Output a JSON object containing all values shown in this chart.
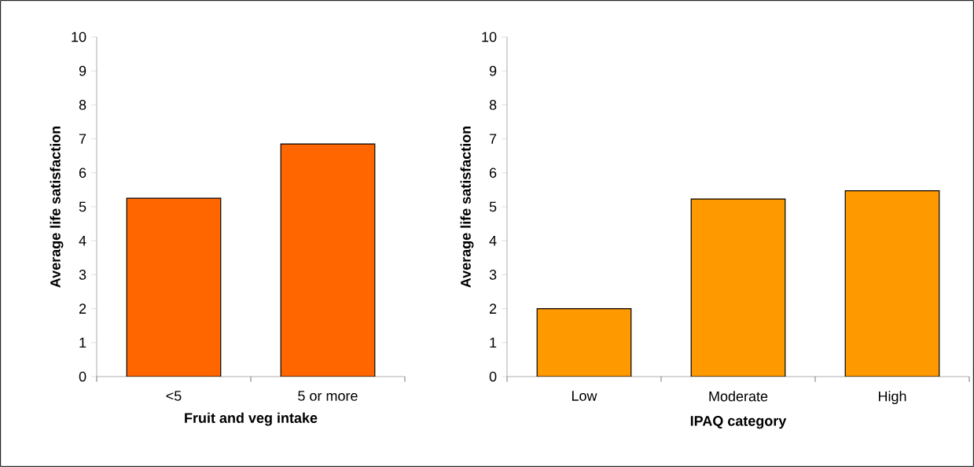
{
  "chart_data": [
    {
      "type": "bar",
      "xlabel": "Fruit and veg intake",
      "ylabel": "Average life satisfaction",
      "categories": [
        "<5",
        "5 or more"
      ],
      "values": [
        5.25,
        6.85
      ],
      "color": "#ff6600",
      "ylim": [
        0,
        10
      ],
      "yticks": [
        0,
        1,
        2,
        3,
        4,
        5,
        6,
        7,
        8,
        9,
        10
      ],
      "grid": false
    },
    {
      "type": "bar",
      "xlabel": "IPAQ category",
      "ylabel": "Average life satisfaction",
      "categories": [
        "Low",
        "Moderate",
        "High"
      ],
      "values": [
        2.0,
        5.23,
        5.47
      ],
      "color": "#ff9900",
      "ylim": [
        0,
        10
      ],
      "yticks": [
        0,
        1,
        2,
        3,
        4,
        5,
        6,
        7,
        8,
        9,
        10
      ],
      "grid": false
    }
  ]
}
